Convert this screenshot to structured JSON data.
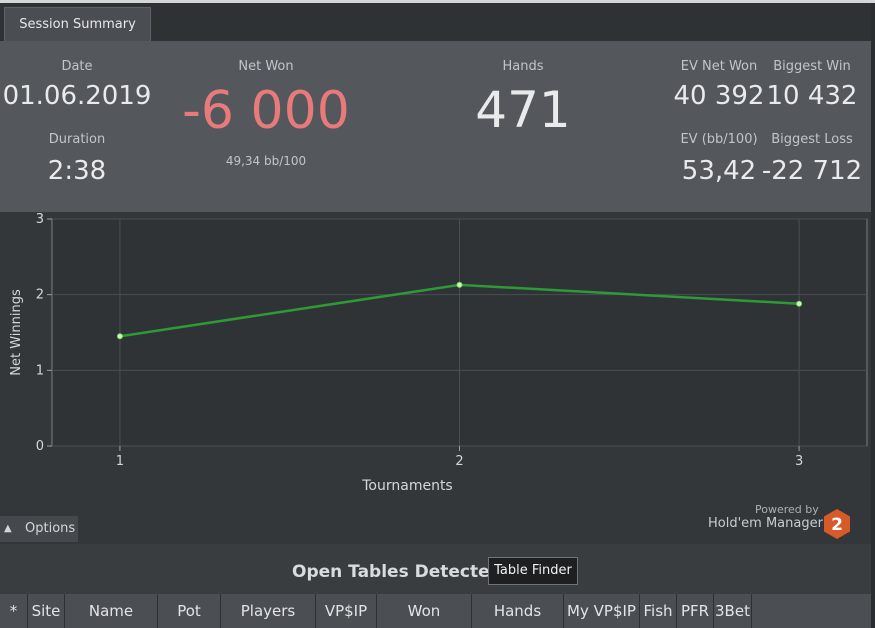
{
  "tab": {
    "label": "Session Summary"
  },
  "summary": {
    "date_label": "Date",
    "date_value": "01.06.2019",
    "duration_label": "Duration",
    "duration_value": "2:38",
    "net_won_label": "Net Won",
    "net_won_value": "-6 000",
    "bb100": "49,34 bb/100",
    "hands_label": "Hands",
    "hands_value": "471",
    "ev_net_won_label": "EV Net Won",
    "ev_net_won_value": "40 392",
    "biggest_win_label": "Biggest Win",
    "biggest_win_value": "10 432",
    "ev_bb100_label": "EV (bb/100)",
    "ev_bb100_value": "53,42",
    "biggest_loss_label": "Biggest Loss",
    "biggest_loss_value": "-22 712"
  },
  "colors": {
    "net_won_negative": "#e97a7a",
    "line": "#2e9a36",
    "point": "#c8ffb0",
    "hm_logo": "#d65a2a"
  },
  "chart_data": {
    "type": "line",
    "x": [
      1,
      2,
      3
    ],
    "series": [
      {
        "values": [
          1.45,
          2.13,
          1.88
        ]
      }
    ],
    "xlabel": "Tournaments",
    "ylabel": "Net Winnings",
    "xticks": [
      "1",
      "2",
      "3"
    ],
    "yticks": [
      "0",
      "1",
      "2",
      "3"
    ],
    "xlim": [
      0.8,
      3.2
    ],
    "ylim": [
      0,
      3
    ],
    "grid": true
  },
  "options": {
    "label": "Options",
    "icon": "chevron-up-icon"
  },
  "branding": {
    "powered_by": "Powered by",
    "product": "Hold'em Manager",
    "logo_text": "2"
  },
  "open_tables": {
    "title": "Open Tables Detected",
    "finder_button": "Table Finder",
    "columns": [
      "*",
      "Site",
      "Name",
      "Pot",
      "Players",
      "VP$IP",
      "Won",
      "Hands",
      "My VP$IP",
      "Fish",
      "PFR",
      "3Bet"
    ]
  }
}
